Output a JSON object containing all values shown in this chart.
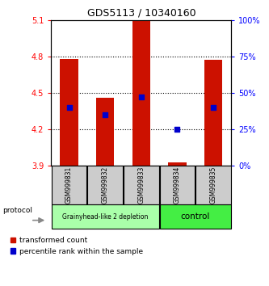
{
  "title": "GDS5113 / 10340160",
  "samples": [
    "GSM999831",
    "GSM999832",
    "GSM999833",
    "GSM999834",
    "GSM999835"
  ],
  "groups": [
    "Grainyhead-like 2 depletion",
    "Grainyhead-like 2 depletion",
    "Grainyhead-like 2 depletion",
    "control",
    "control"
  ],
  "bar_bottom": 3.9,
  "bar_tops": [
    4.78,
    4.46,
    5.09,
    3.93,
    4.77
  ],
  "blue_pct": [
    40,
    35,
    47,
    25,
    40
  ],
  "ylim_left": [
    3.9,
    5.1
  ],
  "ylim_right": [
    0,
    100
  ],
  "yticks_left": [
    3.9,
    4.2,
    4.5,
    4.8,
    5.1
  ],
  "yticks_right": [
    0,
    25,
    50,
    75,
    100
  ],
  "bar_color": "#cc1100",
  "dot_color": "#0000cc",
  "grid_dotted_at": [
    4.2,
    4.5,
    4.8
  ],
  "bar_width": 0.5,
  "background_color": "#ffffff",
  "gh_color": "#aaffaa",
  "ctrl_color": "#44ee44",
  "sample_box_color": "#cccccc",
  "legend_red": "transformed count",
  "legend_blue": "percentile rank within the sample",
  "title_fontsize": 9,
  "tick_fontsize": 7,
  "sample_fontsize": 5.5,
  "group_fontsize_gh": 5.5,
  "group_fontsize_ctrl": 7.5,
  "legend_fontsize": 6.5
}
